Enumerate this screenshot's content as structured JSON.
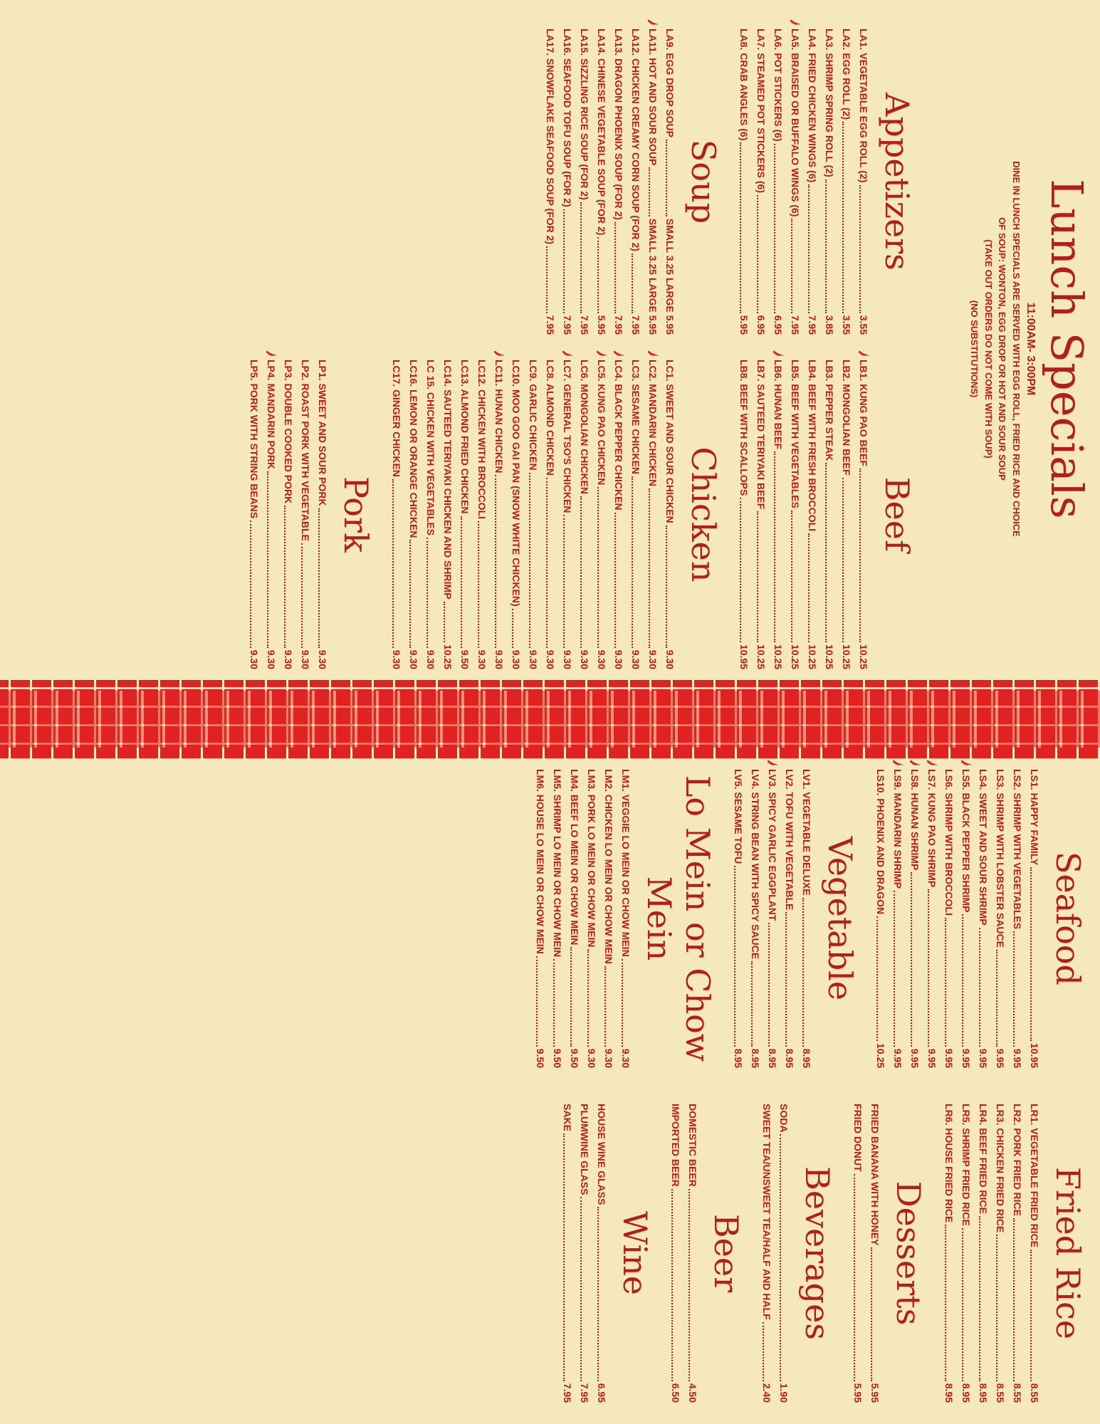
{
  "left": {
    "title": "Lunch Specials",
    "hours": "11:00AM- 3:00PM",
    "notes": [
      "DINE IN LUNCH SPECIALS ARE SERVED WITH EGG ROLL, FRIED RICE AND CHOICE",
      "OF SOUP: WONTON, EGG DROP OR HOT AND SOUR SOUP",
      "(TAKE OUT ORDERS DO NOT COME WITH SOUP)",
      "(NO SUBSTITUTIONS)"
    ],
    "appetizers": {
      "title": "Appetizers",
      "items": [
        {
          "name": "LA1. VEGETABLE EGG ROLL (2)",
          "price": "3.55"
        },
        {
          "name": "LA2. EGG ROLL (2)",
          "price": "3.55"
        },
        {
          "name": "LA3. SHRIMP SPRING ROLL (2)",
          "price": "3.85"
        },
        {
          "name": "LA4. FRIED CHICKEN WINGS (6)",
          "price": "7.95"
        },
        {
          "name": "LA5. BRAISED OR BUFFALO WINGS (6)",
          "price": "7.95",
          "spicy": true
        },
        {
          "name": "LA6. POT STICKERS (6)",
          "price": "6.95"
        },
        {
          "name": "LA7. STEAMED POT STICKERS (6)",
          "price": "6.95"
        },
        {
          "name": "LA8. CRAB ANGLES (6)",
          "price": "5.95"
        }
      ]
    },
    "soup": {
      "title": "Soup",
      "items": [
        {
          "name": "LA9. EGG DROP SOUP",
          "price": "SMALL 3.25 LARGE 5.95"
        },
        {
          "name": "LA11. HOT AND SOUR SOUP",
          "price": "SMALL 3.25 LARGE 5.95",
          "spicy": true
        },
        {
          "name": "LA12. CHICKEN CREAMY CORN SOUP (FOR 2)",
          "price": "7.95"
        },
        {
          "name": "LA13. DRAGON PHOENIX SOUP (FOR 2)",
          "price": "7.95"
        },
        {
          "name": "LA14. CHINESE VEGETABLE SOUP (FOR 2)",
          "price": "5.95"
        },
        {
          "name": "LA15. SIZZLING RICE SOUP (FOR 2)",
          "price": "7.95"
        },
        {
          "name": "LA16. SEAFOOD TOFU SOUP (FOR 2)",
          "price": "7.95"
        },
        {
          "name": "LA17. SNOWFLAKE SEAFOOD SOUP (FOR 2)",
          "price": "7.95"
        }
      ]
    },
    "beef": {
      "title": "Beef",
      "items": [
        {
          "name": "LB1. KUNG PAO BEEF",
          "price": "10.25",
          "spicy": true
        },
        {
          "name": "LB2. MONGOLIAN BEEF",
          "price": "10.25"
        },
        {
          "name": "LB3. PEPPER STEAK",
          "price": "10.25"
        },
        {
          "name": "LB4. BEEF WITH FRESH BROCCOLI",
          "price": "10.25"
        },
        {
          "name": "LB5. BEEF WITH VEGETABLES",
          "price": "10.25"
        },
        {
          "name": "LB6. HUNAN BEEF",
          "price": "10.25",
          "spicy": true
        },
        {
          "name": "LB7. SAUTEED TERIYAKI BEEF",
          "price": "10.25"
        },
        {
          "name": "LB8. BEEF WITH SCALLOPS",
          "price": "10.95"
        }
      ]
    },
    "chicken": {
      "title": "Chicken",
      "items": [
        {
          "name": "LC1. SWEET AND SOUR CHICKEN",
          "price": "9.30"
        },
        {
          "name": "LC2. MANDARIN CHICKEN",
          "price": "9.30",
          "spicy": true
        },
        {
          "name": "LC3. SESAME CHICKEN",
          "price": "9.30"
        },
        {
          "name": "LC4. BLACK PEPPER CHICKEN",
          "price": "9.30",
          "spicy": true
        },
        {
          "name": "LC5. KUNG PAO CHICKEN",
          "price": "9.30",
          "spicy": true
        },
        {
          "name": "LC6. MONGOLIAN CHICKEN",
          "price": "9.30"
        },
        {
          "name": "LC7. GENERAL TSO'S CHICKEN",
          "price": "9.30",
          "spicy": true
        },
        {
          "name": "LC8. ALMOND CHICKEN",
          "price": "9.30"
        },
        {
          "name": "LC9. GARLIC CHICKEN",
          "price": "9.30"
        },
        {
          "name": "LC10. MOO GOO GAI PAN (SNOW WHITE CHICKEN)",
          "price": "9.30"
        },
        {
          "name": "LC11. HUNAN CHICKEN",
          "price": "9.30",
          "spicy": true
        },
        {
          "name": "LC12. CHICKEN WITH BROCCOLI",
          "price": "9.30"
        },
        {
          "name": "LC13. ALMOND FRIED CHICKEN",
          "price": "9.50"
        },
        {
          "name": "LC14. SAUTEED TERIYAKI CHICKEN AND SHRIMP",
          "price": "10.25"
        },
        {
          "name": "LC 15. CHICKEN WITH VEGETABLES",
          "price": "9.30"
        },
        {
          "name": "LC16. LEMON OR ORANGE CHICKEN",
          "price": "9.30"
        },
        {
          "name": "LC17. GINGER CHICKEN",
          "price": "9.30"
        }
      ]
    },
    "pork": {
      "title": "Pork",
      "items": [
        {
          "name": "LP1. SWEET AND SOUR PORK",
          "price": "9.30"
        },
        {
          "name": "LP2. ROAST PORK WITH VEGETABLE",
          "price": "9.30"
        },
        {
          "name": "LP3. DOUBLE COOKED PORK",
          "price": "9.30"
        },
        {
          "name": "LP4. MANDARIN PORK",
          "price": "9.30",
          "spicy": true
        },
        {
          "name": "LP5. PORK WITH STRING BEANS",
          "price": "9.30"
        }
      ]
    }
  },
  "right": {
    "seafood": {
      "title": "Seafood",
      "items": [
        {
          "name": "LS1. HAPPY FAMILY",
          "price": "10.95"
        },
        {
          "name": "LS2. SHRIMP WITH VEGETABLES",
          "price": "9.95"
        },
        {
          "name": "LS3. SHRIMP WITH LOBSTER SAUCE",
          "price": "9.95"
        },
        {
          "name": "LS4. SWEET AND SOUR SHRIMP",
          "price": "9.95"
        },
        {
          "name": "LS5. BLACK PEPPER SHRIMP",
          "price": "9.95",
          "spicy": true
        },
        {
          "name": "LS6. SHRIMP WITH BROCCOLI",
          "price": "9.95"
        },
        {
          "name": "LS7. KUNG PAO SHRIMP",
          "price": "9.95",
          "spicy": true
        },
        {
          "name": "LS8. HUNAN SHRIMP",
          "price": "9.95",
          "spicy": true
        },
        {
          "name": "LS9. MANDARIN SHRIMP",
          "price": "9.95",
          "spicy": true
        },
        {
          "name": "LS10. PHOENIX AND DRAGON",
          "price": "10.25"
        }
      ]
    },
    "vegetable": {
      "title": "Vegetable",
      "items": [
        {
          "name": "LV1. VEGETABLE DELUXE",
          "price": "8.95"
        },
        {
          "name": "LV2. TOFU WITH VEGETABLE",
          "price": "8.95"
        },
        {
          "name": "LV3. SPICY GARLIC EGGPLANT",
          "price": "8.95",
          "spicy": true
        },
        {
          "name": "LV4. STRING BEAN WITH SPICY SAUCE",
          "price": "8.95"
        },
        {
          "name": "LV5. SESAME TOFU",
          "price": "8.95"
        }
      ]
    },
    "lomein": {
      "title": "Lo Mein or Chow Mein",
      "items": [
        {
          "name": "LM1. VEGGIE LO MEIN OR CHOW MEIN",
          "price": "9.30"
        },
        {
          "name": "LM2. CHICKEN LO MEIN OR CHOW MEIN",
          "price": "9.30"
        },
        {
          "name": "LM3. PORK LO MEIN OR CHOW MEIN",
          "price": "9.30"
        },
        {
          "name": "LM4. BEEF LO MEIN OR CHOW MEIN",
          "price": "9.50"
        },
        {
          "name": "LM5. SHRIMP LO MEIN OR CHOW MEIN",
          "price": "9.50"
        },
        {
          "name": "LM6. HOUSE LO MEIN OR CHOW MEIN",
          "price": "9.50"
        }
      ]
    },
    "friedrice": {
      "title": "Fried Rice",
      "items": [
        {
          "name": "LR1. VEGETABLE FRIED RICE",
          "price": "8.55"
        },
        {
          "name": "LR2. PORK FRIED RICE",
          "price": "8.55"
        },
        {
          "name": "LR3. CHICKEN FRIED RICE",
          "price": "8.55"
        },
        {
          "name": "LR4. BEEF FRIED RICE",
          "price": "8.95"
        },
        {
          "name": "LR5. SHRIMP FRIED RICE",
          "price": "8.95"
        },
        {
          "name": "LR6. HOUSE FRIED RICE",
          "price": "8.95"
        }
      ]
    },
    "desserts": {
      "title": "Desserts",
      "items": [
        {
          "name": "FRIED BANANA WITH HONEY",
          "price": "5.95"
        },
        {
          "name": "FRIED DONUT",
          "price": "5.95"
        }
      ]
    },
    "beverages": {
      "title": "Beverages",
      "items": [
        {
          "name": "SODA",
          "price": "1.90"
        },
        {
          "name": "SWEET TEA/UNSWEET TEA/HALF AND HALF",
          "price": "2.40"
        }
      ]
    },
    "beer": {
      "title": "Beer",
      "items": [
        {
          "name": "DOMESTIC BEER",
          "price": "4.50"
        },
        {
          "name": "IMPORTED BEER",
          "price": "6.50"
        }
      ]
    },
    "wine": {
      "title": "Wine",
      "items": [
        {
          "name": "HOUSE WINE GLASS",
          "price": "6.95"
        },
        {
          "name": "PLUMWINE GLASS",
          "price": "7.95"
        },
        {
          "name": "SAKE",
          "price": "7.95"
        }
      ]
    }
  },
  "colors": {
    "background": "#f5e8bc",
    "accent": "#b21d1d",
    "border": "#e02222",
    "chili": "#d9261c",
    "chili_stem": "#3a8a2a"
  }
}
